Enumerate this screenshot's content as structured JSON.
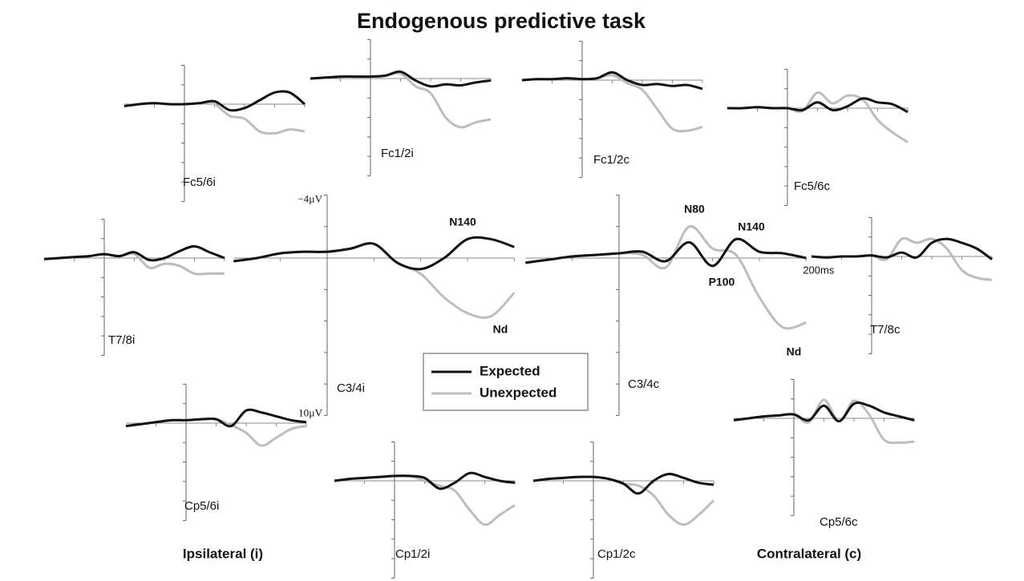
{
  "chart_data": {
    "type": "line",
    "title": "Endogenous predictive task",
    "x": [
      -100,
      -75,
      -50,
      -25,
      0,
      25,
      50,
      75,
      100,
      125,
      150,
      175,
      200
    ],
    "xlim": [
      -100,
      200
    ],
    "xticks": [
      -50,
      50,
      100,
      150,
      {
        "value": 200,
        "label": "200ms"
      }
    ],
    "ylim": [
      -4,
      10
    ],
    "yticks": [
      {
        "value": -4,
        "label": "−4µV"
      },
      -2,
      2,
      4,
      6,
      8,
      {
        "value": 10,
        "label": "10µV"
      }
    ],
    "legend": [
      {
        "name": "Expected",
        "color": "#111111"
      },
      {
        "name": "Unexpected",
        "color": "#bdbdbd"
      }
    ],
    "panels": [
      {
        "label": "Fc5/6i",
        "expected": [
          0.2,
          0,
          -0.1,
          0,
          0,
          -0.1,
          -0.3,
          0.6,
          0.4,
          -0.4,
          -1.2,
          -1.2,
          0
        ],
        "unexpected": [
          0.2,
          0,
          -0.1,
          0,
          0,
          -0.1,
          0,
          1.2,
          1.5,
          2.8,
          3,
          2.6,
          2.8
        ]
      },
      {
        "label": "Fc1/2i",
        "expected": [
          0,
          -0.1,
          -0.2,
          -0.2,
          -0.2,
          -0.3,
          -0.7,
          0.2,
          0.8,
          0.6,
          0.7,
          0.4,
          0.2
        ],
        "unexpected": [
          0,
          -0.1,
          -0.2,
          -0.2,
          -0.2,
          -0.3,
          -0.5,
          0.8,
          1.5,
          4,
          5,
          4.5,
          4.2
        ]
      },
      {
        "label": "Fc1/2c",
        "expected": [
          0,
          -0.1,
          -0.1,
          -0.2,
          -0.1,
          -0.2,
          -0.8,
          0,
          0.5,
          0.4,
          0.6,
          0.5,
          0.9
        ],
        "unexpected": [
          0,
          -0.1,
          -0.1,
          -0.2,
          -0.1,
          -0.2,
          -0.5,
          0.3,
          1,
          3,
          5,
          5.2,
          4.8
        ]
      },
      {
        "label": "Fc5/6c",
        "expected": [
          0,
          0,
          -0.1,
          0,
          0,
          0.2,
          -0.6,
          0.2,
          -0.2,
          -1,
          -0.6,
          -0.4,
          0.4
        ],
        "unexpected": [
          0,
          0,
          -0.1,
          0,
          0,
          0.3,
          -1.6,
          -0.5,
          -1.3,
          -0.9,
          1.2,
          2.5,
          3.5
        ]
      },
      {
        "label": "T7/8i",
        "expected": [
          0.1,
          0,
          -0.1,
          -0.2,
          -0.4,
          -0.2,
          -0.6,
          0.2,
          0,
          -0.7,
          -1.2,
          -0.6,
          0
        ],
        "unexpected": [
          0.1,
          0,
          -0.1,
          -0.2,
          -0.4,
          -0.2,
          -0.4,
          1,
          0.6,
          0.8,
          1.6,
          1.6,
          1.6
        ]
      },
      {
        "label": "C3/4i",
        "expected": [
          0.2,
          0,
          -0.3,
          -0.4,
          -0.4,
          -0.6,
          -0.9,
          0.3,
          0.7,
          0,
          -1.2,
          -1.2,
          -0.7
        ],
        "unexpected": [
          0.2,
          0,
          -0.3,
          -0.4,
          -0.4,
          -0.6,
          -0.9,
          0.3,
          1,
          2.5,
          3.5,
          3.7,
          2.2
        ]
      },
      {
        "label": "C3/4c",
        "expected": [
          0.3,
          0.1,
          -0.1,
          -0.2,
          -0.3,
          -0.4,
          0.2,
          -1,
          0.5,
          -1.2,
          -0.4,
          -0.3,
          0
        ],
        "unexpected": [
          0.3,
          0.1,
          -0.1,
          -0.2,
          -0.3,
          -0.2,
          0.6,
          -2,
          -0.6,
          -0.2,
          2.5,
          4.4,
          4.1
        ]
      },
      {
        "label": "T7/8c",
        "expected": [
          0,
          0.1,
          0,
          0,
          -0.1,
          0.1,
          -0.4,
          0.1,
          -1.4,
          -1.8,
          -1.4,
          -0.8,
          0.3
        ],
        "unexpected": [
          0,
          0.1,
          0,
          0,
          -0.1,
          0.3,
          -1.8,
          -1.4,
          -1.8,
          -0.8,
          1.4,
          2.2,
          2.4
        ]
      },
      {
        "label": "Cp5/6i",
        "expected": [
          0.3,
          0.1,
          -0.1,
          -0.3,
          -0.3,
          -0.4,
          -0.4,
          0.3,
          -1.3,
          -1.1,
          -0.7,
          -0.3,
          -0.1
        ],
        "unexpected": [
          0.3,
          0.1,
          -0.1,
          -0.3,
          -0.3,
          -0.4,
          -0.4,
          0.2,
          1,
          2.3,
          1.5,
          0.6,
          0.3
        ]
      },
      {
        "label": "Cp1/2i",
        "expected": [
          0,
          -0.2,
          -0.3,
          -0.4,
          -0.5,
          -0.5,
          -0.3,
          0.8,
          0.2,
          -0.8,
          -0.4,
          0,
          0.2
        ],
        "unexpected": [
          0,
          -0.2,
          -0.3,
          -0.4,
          -0.5,
          -0.5,
          0,
          0.5,
          1,
          3,
          4.5,
          3.5,
          2.5
        ]
      },
      {
        "label": "Cp1/2c",
        "expected": [
          0,
          -0.2,
          -0.3,
          -0.4,
          -0.4,
          -0.2,
          0.3,
          1.3,
          0,
          -0.7,
          -0.3,
          0.2,
          0.4
        ],
        "unexpected": [
          0,
          -0.2,
          -0.3,
          -0.4,
          -0.4,
          -0.2,
          0.3,
          0.5,
          1.5,
          3.5,
          4.5,
          3.5,
          2
        ]
      },
      {
        "label": "Cp5/6c",
        "expected": [
          0.2,
          0,
          -0.2,
          -0.3,
          -0.4,
          0.2,
          -1.3,
          0.3,
          -1.5,
          -1.3,
          -0.6,
          -0.2,
          0.2
        ],
        "unexpected": [
          0.2,
          0,
          -0.2,
          -0.3,
          -0.4,
          0.4,
          -1.9,
          0.3,
          -1.8,
          -0.4,
          2.2,
          2.5,
          2.4
        ]
      }
    ],
    "annotations": [
      "N140",
      "Nd",
      "N80",
      "N140",
      "P100",
      "Nd"
    ],
    "side_labels": [
      "Ipsilateral (i)",
      "Contralateral (c)"
    ]
  }
}
